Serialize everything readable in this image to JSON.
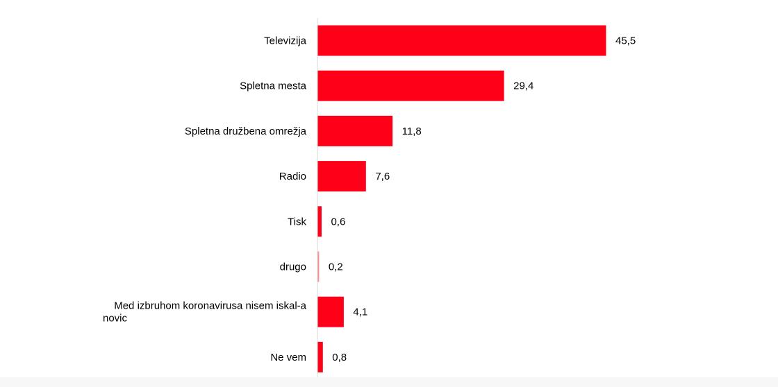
{
  "chart_data": {
    "type": "bar",
    "orientation": "horizontal",
    "title": "",
    "xlabel": "",
    "ylabel": "",
    "categories": [
      [
        "Televizija"
      ],
      [
        "Spletna mesta"
      ],
      [
        "Spletna družbena omrežja"
      ],
      [
        "Radio"
      ],
      [
        "Tisk"
      ],
      [
        "drugo"
      ],
      [
        "Med izbruhom koronavirusa nisem iskal-a",
        "novic"
      ],
      [
        "Ne vem"
      ]
    ],
    "values": [
      45.5,
      29.4,
      11.8,
      7.6,
      0.6,
      0.2,
      4.1,
      0.8
    ],
    "value_labels": [
      "45,5",
      "29,4",
      "11,8",
      "7,6",
      "0,6",
      "0,2",
      "4,1",
      "0,8"
    ],
    "xlim": [
      0,
      50
    ],
    "grid": false,
    "legend": "none",
    "bar_color": "#ff0019",
    "faded_bar_color": "#ff8a93",
    "axis_color": "#d9d9d9"
  }
}
